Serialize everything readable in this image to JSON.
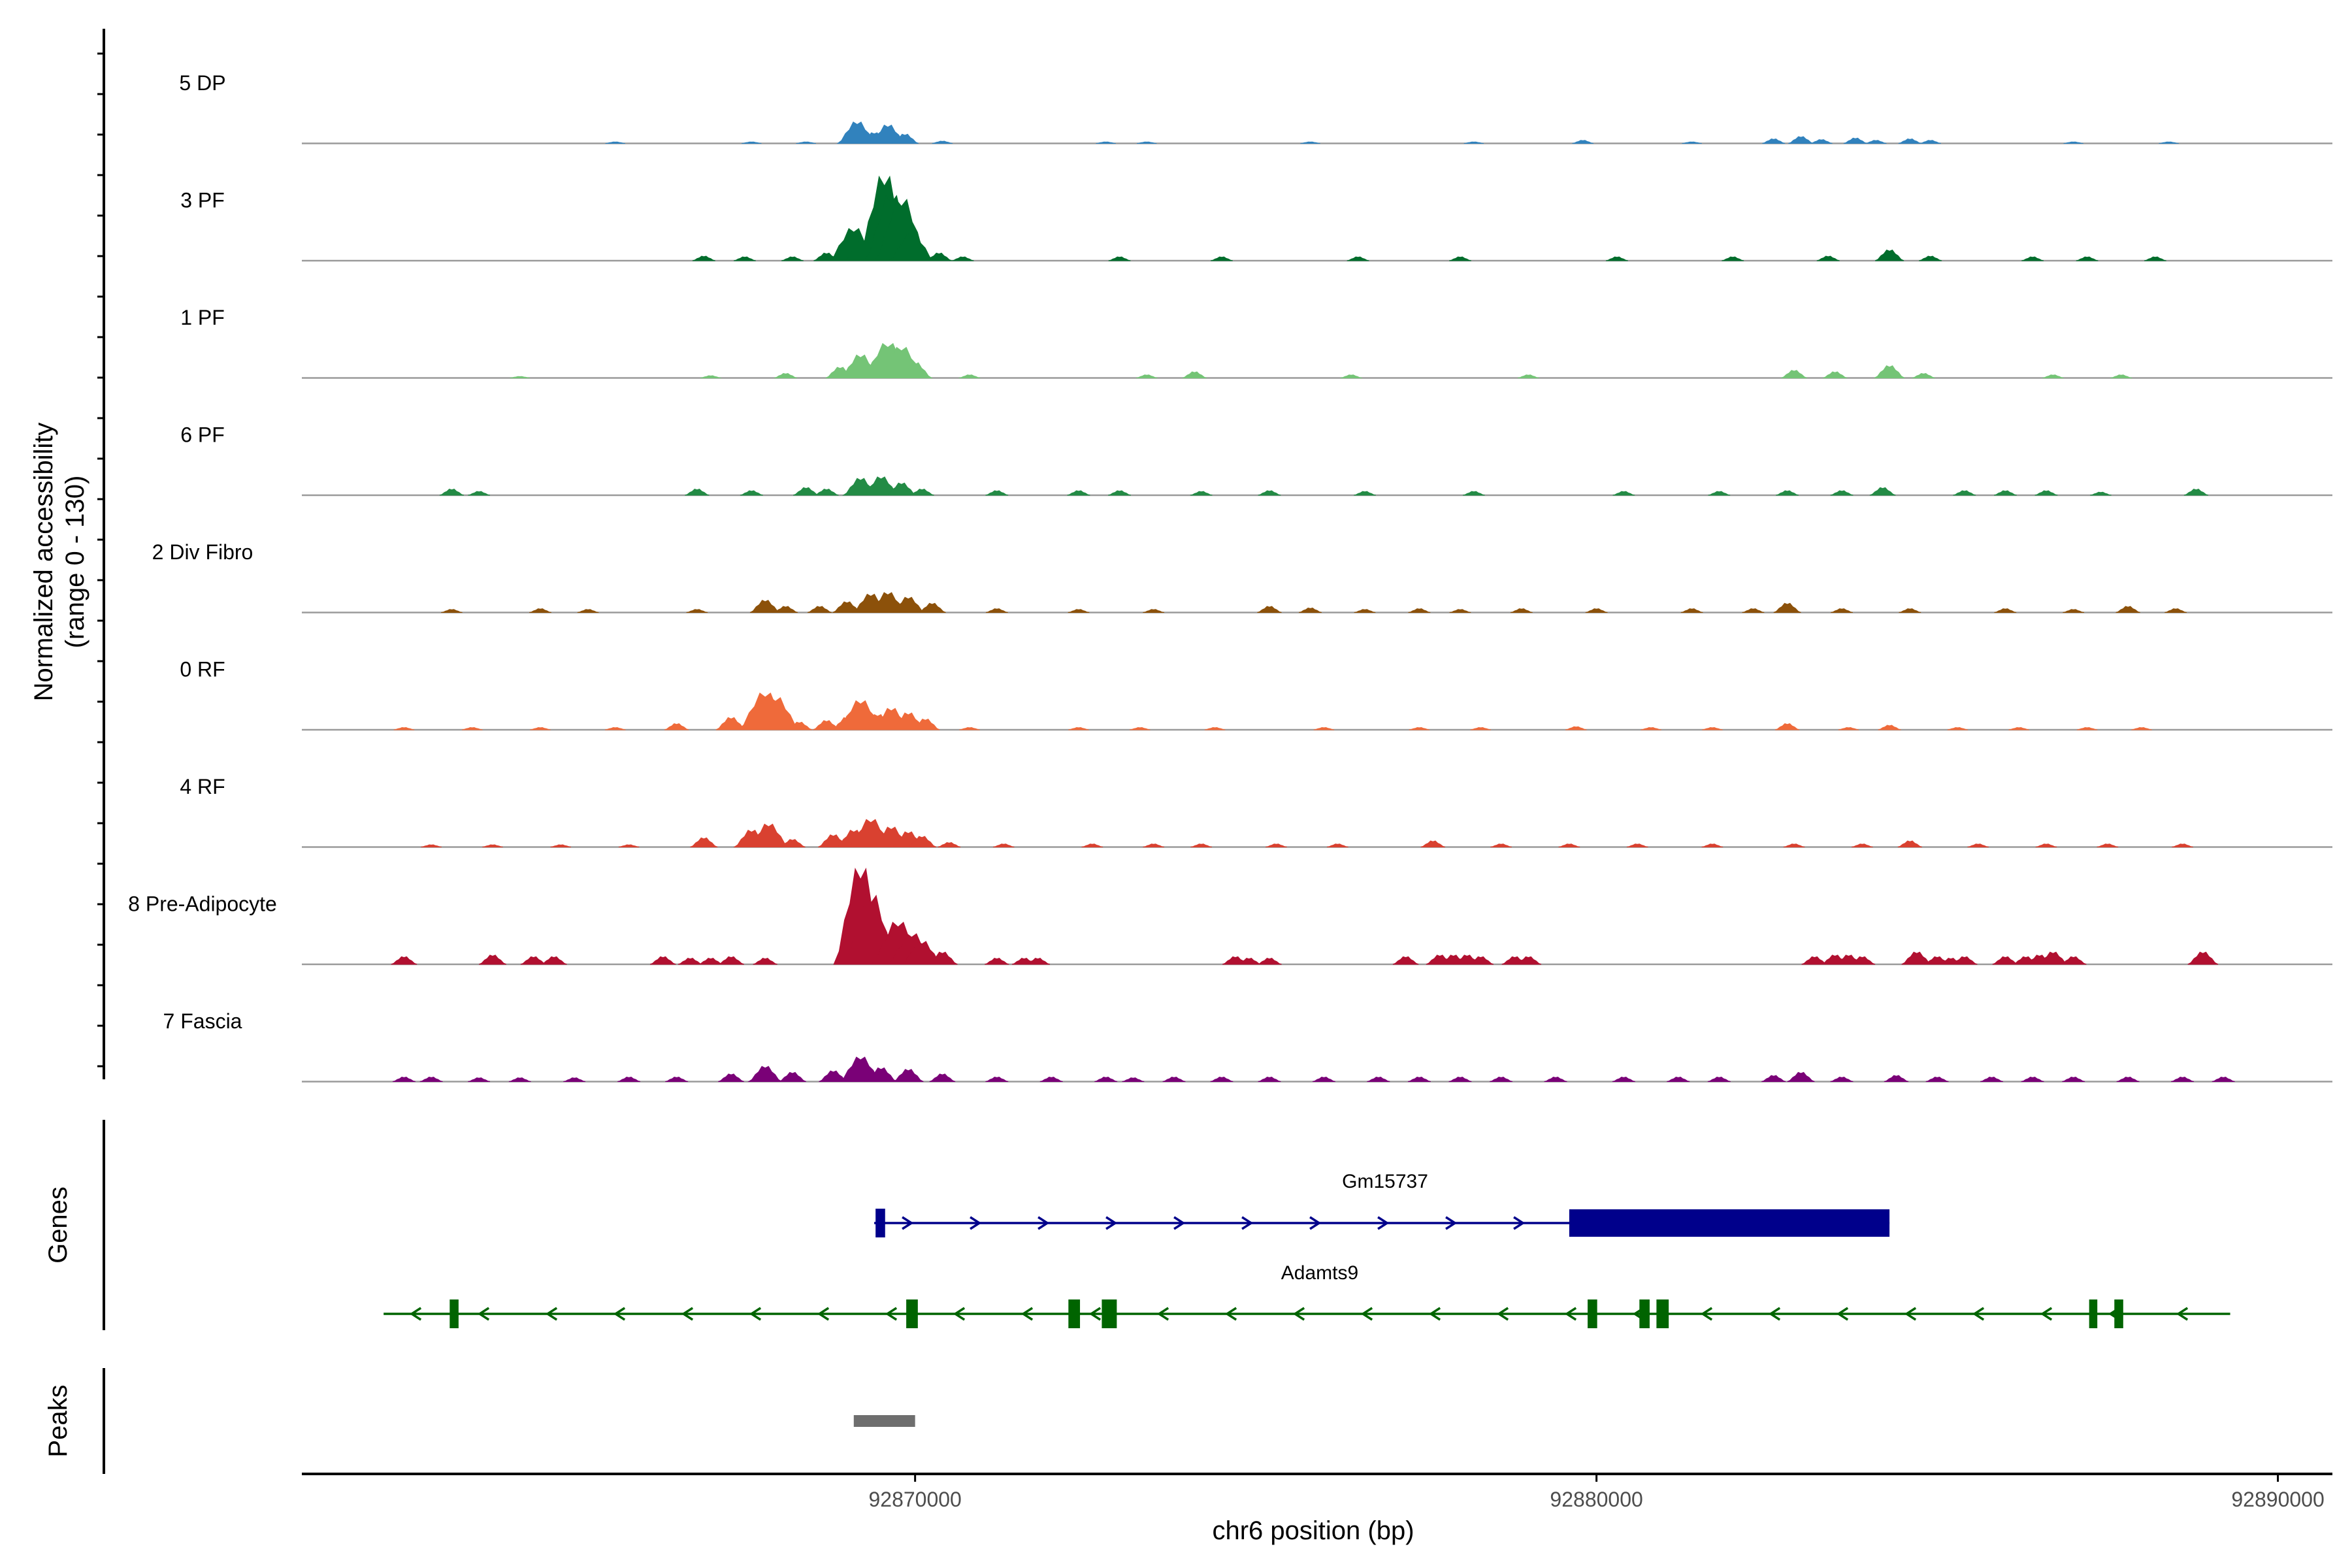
{
  "chart_data": {
    "type": "area",
    "title": "",
    "xlabel": "chr6 position (bp)",
    "ylabel_line1": "Normalized accessibility",
    "ylabel_line2": "(range 0 - 130)",
    "y_range": [
      0,
      130
    ],
    "x_range": [
      92861000,
      92890800
    ],
    "x_ticks": [
      92870000,
      92880000,
      92890000
    ],
    "x_tick_labels": [
      "92870000",
      "92880000",
      "92890000"
    ],
    "tracks": [
      {
        "name": "5 DP",
        "color": "#3182bd",
        "peaks": [
          [
            92865600,
            2
          ],
          [
            92867600,
            2
          ],
          [
            92868400,
            2
          ],
          [
            92869150,
            28
          ],
          [
            92869400,
            14
          ],
          [
            92869600,
            24
          ],
          [
            92869850,
            12
          ],
          [
            92870400,
            3
          ],
          [
            92872800,
            2
          ],
          [
            92873400,
            2
          ],
          [
            92875800,
            2
          ],
          [
            92878200,
            2
          ],
          [
            92879800,
            4
          ],
          [
            92881400,
            2
          ],
          [
            92882600,
            6
          ],
          [
            92883000,
            9
          ],
          [
            92883300,
            5
          ],
          [
            92883800,
            7
          ],
          [
            92884100,
            4
          ],
          [
            92884600,
            6
          ],
          [
            92884900,
            4
          ],
          [
            92887000,
            2
          ],
          [
            92888400,
            2
          ]
        ]
      },
      {
        "name": "3 PF",
        "color": "#006d2c",
        "peaks": [
          [
            92866900,
            6
          ],
          [
            92867500,
            5
          ],
          [
            92868200,
            5
          ],
          [
            92868700,
            10
          ],
          [
            92869100,
            42
          ],
          [
            92869250,
            28
          ],
          [
            92869550,
            110
          ],
          [
            92869650,
            85
          ],
          [
            92869800,
            80
          ],
          [
            92869950,
            36
          ],
          [
            92870350,
            10
          ],
          [
            92870700,
            5
          ],
          [
            92873000,
            5
          ],
          [
            92874500,
            5
          ],
          [
            92876500,
            5
          ],
          [
            92878000,
            5
          ],
          [
            92880300,
            5
          ],
          [
            92882000,
            5
          ],
          [
            92883400,
            6
          ],
          [
            92884300,
            14
          ],
          [
            92884900,
            6
          ],
          [
            92886400,
            5
          ],
          [
            92887200,
            5
          ],
          [
            92888200,
            5
          ]
        ]
      },
      {
        "name": "1 PF",
        "color": "#74c476",
        "peaks": [
          [
            92864200,
            2
          ],
          [
            92867000,
            3
          ],
          [
            92868100,
            6
          ],
          [
            92868900,
            14
          ],
          [
            92869200,
            30
          ],
          [
            92869600,
            45
          ],
          [
            92869800,
            40
          ],
          [
            92870000,
            20
          ],
          [
            92870800,
            4
          ],
          [
            92873400,
            4
          ],
          [
            92874100,
            8
          ],
          [
            92876400,
            4
          ],
          [
            92879000,
            4
          ],
          [
            92882900,
            10
          ],
          [
            92883500,
            8
          ],
          [
            92884300,
            16
          ],
          [
            92884800,
            6
          ],
          [
            92886700,
            4
          ],
          [
            92887700,
            4
          ]
        ]
      },
      {
        "name": "6 PF",
        "color": "#238b45",
        "peaks": [
          [
            92863200,
            8
          ],
          [
            92863600,
            5
          ],
          [
            92866800,
            8
          ],
          [
            92867600,
            6
          ],
          [
            92868400,
            10
          ],
          [
            92868700,
            8
          ],
          [
            92869200,
            22
          ],
          [
            92869500,
            24
          ],
          [
            92869800,
            16
          ],
          [
            92870100,
            8
          ],
          [
            92871200,
            6
          ],
          [
            92872400,
            6
          ],
          [
            92873000,
            6
          ],
          [
            92874200,
            5
          ],
          [
            92875200,
            6
          ],
          [
            92876600,
            5
          ],
          [
            92878200,
            5
          ],
          [
            92880400,
            5
          ],
          [
            92881800,
            5
          ],
          [
            92882800,
            6
          ],
          [
            92883600,
            6
          ],
          [
            92884200,
            10
          ],
          [
            92885400,
            6
          ],
          [
            92886000,
            6
          ],
          [
            92886600,
            6
          ],
          [
            92887400,
            4
          ],
          [
            92888800,
            8
          ]
        ]
      },
      {
        "name": "2 Div Fibro",
        "color": "#8c510a",
        "peaks": [
          [
            92863200,
            4
          ],
          [
            92864500,
            5
          ],
          [
            92865200,
            4
          ],
          [
            92866800,
            4
          ],
          [
            92867800,
            16
          ],
          [
            92868100,
            8
          ],
          [
            92868600,
            8
          ],
          [
            92869000,
            14
          ],
          [
            92869350,
            24
          ],
          [
            92869600,
            26
          ],
          [
            92869900,
            20
          ],
          [
            92870250,
            12
          ],
          [
            92871200,
            5
          ],
          [
            92872400,
            4
          ],
          [
            92873500,
            4
          ],
          [
            92875200,
            8
          ],
          [
            92875800,
            6
          ],
          [
            92876600,
            4
          ],
          [
            92877400,
            5
          ],
          [
            92878000,
            4
          ],
          [
            92878900,
            5
          ],
          [
            92880000,
            5
          ],
          [
            92881400,
            5
          ],
          [
            92882300,
            5
          ],
          [
            92882800,
            12
          ],
          [
            92883600,
            5
          ],
          [
            92884600,
            5
          ],
          [
            92886000,
            5
          ],
          [
            92887000,
            4
          ],
          [
            92887800,
            8
          ],
          [
            92888500,
            5
          ]
        ]
      },
      {
        "name": "0 RF",
        "color": "#ef6a3a",
        "peaks": [
          [
            92862500,
            3
          ],
          [
            92863500,
            3
          ],
          [
            92864500,
            3
          ],
          [
            92865600,
            3
          ],
          [
            92866500,
            8
          ],
          [
            92867300,
            16
          ],
          [
            92867800,
            48
          ],
          [
            92867950,
            42
          ],
          [
            92868300,
            10
          ],
          [
            92868700,
            12
          ],
          [
            92869000,
            16
          ],
          [
            92869200,
            38
          ],
          [
            92869450,
            20
          ],
          [
            92869650,
            28
          ],
          [
            92869900,
            22
          ],
          [
            92870150,
            14
          ],
          [
            92870800,
            3
          ],
          [
            92872400,
            3
          ],
          [
            92873300,
            3
          ],
          [
            92874400,
            3
          ],
          [
            92876000,
            3
          ],
          [
            92877400,
            3
          ],
          [
            92878300,
            3
          ],
          [
            92879700,
            4
          ],
          [
            92880800,
            3
          ],
          [
            92881700,
            3
          ],
          [
            92882800,
            8
          ],
          [
            92883700,
            3
          ],
          [
            92884300,
            6
          ],
          [
            92885300,
            3
          ],
          [
            92886200,
            3
          ],
          [
            92887200,
            3
          ],
          [
            92888000,
            3
          ]
        ]
      },
      {
        "name": "4 RF",
        "color": "#d94130",
        "peaks": [
          [
            92862900,
            3
          ],
          [
            92863800,
            3
          ],
          [
            92864800,
            3
          ],
          [
            92865800,
            3
          ],
          [
            92866900,
            12
          ],
          [
            92867600,
            22
          ],
          [
            92867850,
            30
          ],
          [
            92868200,
            10
          ],
          [
            92868800,
            16
          ],
          [
            92869100,
            22
          ],
          [
            92869350,
            36
          ],
          [
            92869650,
            26
          ],
          [
            92869900,
            20
          ],
          [
            92870100,
            14
          ],
          [
            92870500,
            6
          ],
          [
            92871300,
            4
          ],
          [
            92872600,
            4
          ],
          [
            92873500,
            4
          ],
          [
            92874200,
            4
          ],
          [
            92875300,
            4
          ],
          [
            92876200,
            4
          ],
          [
            92877600,
            8
          ],
          [
            92878600,
            4
          ],
          [
            92879600,
            4
          ],
          [
            92880600,
            4
          ],
          [
            92881700,
            4
          ],
          [
            92882900,
            4
          ],
          [
            92883900,
            4
          ],
          [
            92884600,
            8
          ],
          [
            92885600,
            4
          ],
          [
            92886600,
            4
          ],
          [
            92887500,
            4
          ],
          [
            92888600,
            4
          ]
        ]
      },
      {
        "name": "8 Pre-Adipocyte",
        "color": "#b11030",
        "peaks": [
          [
            92862500,
            10
          ],
          [
            92863800,
            12
          ],
          [
            92864400,
            10
          ],
          [
            92864700,
            10
          ],
          [
            92866300,
            10
          ],
          [
            92866700,
            8
          ],
          [
            92867000,
            8
          ],
          [
            92867300,
            10
          ],
          [
            92867800,
            8
          ],
          [
            92869200,
            125
          ],
          [
            92869350,
            90
          ],
          [
            92869550,
            40
          ],
          [
            92869750,
            55
          ],
          [
            92869950,
            40
          ],
          [
            92870100,
            30
          ],
          [
            92870400,
            16
          ],
          [
            92871200,
            8
          ],
          [
            92871600,
            8
          ],
          [
            92871800,
            8
          ],
          [
            92874700,
            10
          ],
          [
            92874900,
            8
          ],
          [
            92875200,
            8
          ],
          [
            92877200,
            10
          ],
          [
            92877700,
            12
          ],
          [
            92877900,
            12
          ],
          [
            92878100,
            12
          ],
          [
            92878300,
            10
          ],
          [
            92878800,
            10
          ],
          [
            92879000,
            10
          ],
          [
            92883200,
            10
          ],
          [
            92883500,
            12
          ],
          [
            92883700,
            12
          ],
          [
            92883900,
            10
          ],
          [
            92884700,
            16
          ],
          [
            92885000,
            10
          ],
          [
            92885200,
            8
          ],
          [
            92885400,
            10
          ],
          [
            92886000,
            10
          ],
          [
            92886300,
            10
          ],
          [
            92886500,
            12
          ],
          [
            92886700,
            16
          ],
          [
            92887000,
            10
          ],
          [
            92888900,
            16
          ]
        ]
      },
      {
        "name": "7 Fascia",
        "color": "#7a0177",
        "peaks": [
          [
            92862500,
            6
          ],
          [
            92862900,
            6
          ],
          [
            92863600,
            5
          ],
          [
            92864200,
            5
          ],
          [
            92865000,
            5
          ],
          [
            92865800,
            6
          ],
          [
            92866500,
            6
          ],
          [
            92867300,
            10
          ],
          [
            92867800,
            20
          ],
          [
            92868200,
            12
          ],
          [
            92868800,
            14
          ],
          [
            92869200,
            32
          ],
          [
            92869500,
            18
          ],
          [
            92869900,
            16
          ],
          [
            92870400,
            10
          ],
          [
            92871200,
            6
          ],
          [
            92872000,
            6
          ],
          [
            92872800,
            6
          ],
          [
            92873200,
            5
          ],
          [
            92873800,
            6
          ],
          [
            92874500,
            6
          ],
          [
            92875200,
            6
          ],
          [
            92876000,
            6
          ],
          [
            92876800,
            6
          ],
          [
            92877400,
            6
          ],
          [
            92878000,
            6
          ],
          [
            92878600,
            6
          ],
          [
            92879400,
            6
          ],
          [
            92880400,
            6
          ],
          [
            92881200,
            6
          ],
          [
            92881800,
            6
          ],
          [
            92882600,
            8
          ],
          [
            92883000,
            12
          ],
          [
            92883600,
            6
          ],
          [
            92884400,
            8
          ],
          [
            92885000,
            6
          ],
          [
            92885800,
            6
          ],
          [
            92886400,
            6
          ],
          [
            92887000,
            6
          ],
          [
            92887800,
            6
          ],
          [
            92888600,
            6
          ],
          [
            92889200,
            6
          ]
        ]
      }
    ],
    "genes": [
      {
        "name": "Gm15737",
        "color": "#00008b",
        "strand": "+",
        "start": 92869400,
        "end": 92884300,
        "exons": [
          [
            92869420,
            92869560
          ],
          [
            92879600,
            92884300
          ]
        ]
      },
      {
        "name": "Adamts9",
        "color": "#006400",
        "strand": "-",
        "start": 92862200,
        "end": 92889300,
        "exons": [
          [
            92863170,
            92863300
          ],
          [
            92869870,
            92870040
          ],
          [
            92872250,
            92872420
          ],
          [
            92872740,
            92872960
          ],
          [
            92879870,
            92880010
          ],
          [
            92880630,
            92880780
          ],
          [
            92880880,
            92881060
          ],
          [
            92887230,
            92887350
          ],
          [
            92887600,
            92887730
          ]
        ]
      }
    ],
    "peaks_track": [
      [
        92869100,
        92870000
      ]
    ],
    "peak_color": "#6e6e6e",
    "panel_labels": {
      "genes": "Genes",
      "peaks": "Peaks"
    }
  }
}
